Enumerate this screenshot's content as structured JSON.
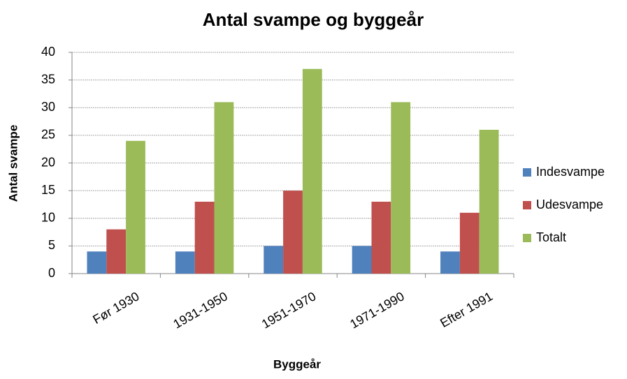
{
  "chart_data": {
    "type": "bar",
    "title": "Antal svampe og byggeår",
    "x_label": "Byggeår",
    "y_label": "Antal svampe",
    "categories": [
      "Før 1930",
      "1931-1950",
      "1951-1970",
      "1971-1990",
      "Efter 1991"
    ],
    "series": [
      {
        "name": "Indesvampe",
        "color": "#4f81bd",
        "values": [
          4,
          4,
          5,
          5,
          4
        ]
      },
      {
        "name": "Udesvampe",
        "color": "#c0504d",
        "values": [
          8,
          13,
          15,
          13,
          11
        ]
      },
      {
        "name": "Totalt",
        "color": "#9bbb59",
        "values": [
          24,
          31,
          37,
          31,
          26
        ]
      }
    ],
    "ylim": [
      0,
      40
    ],
    "yticks": [
      0,
      5,
      10,
      15,
      20,
      25,
      30,
      35,
      40
    ],
    "grid": true,
    "legend": "right"
  }
}
